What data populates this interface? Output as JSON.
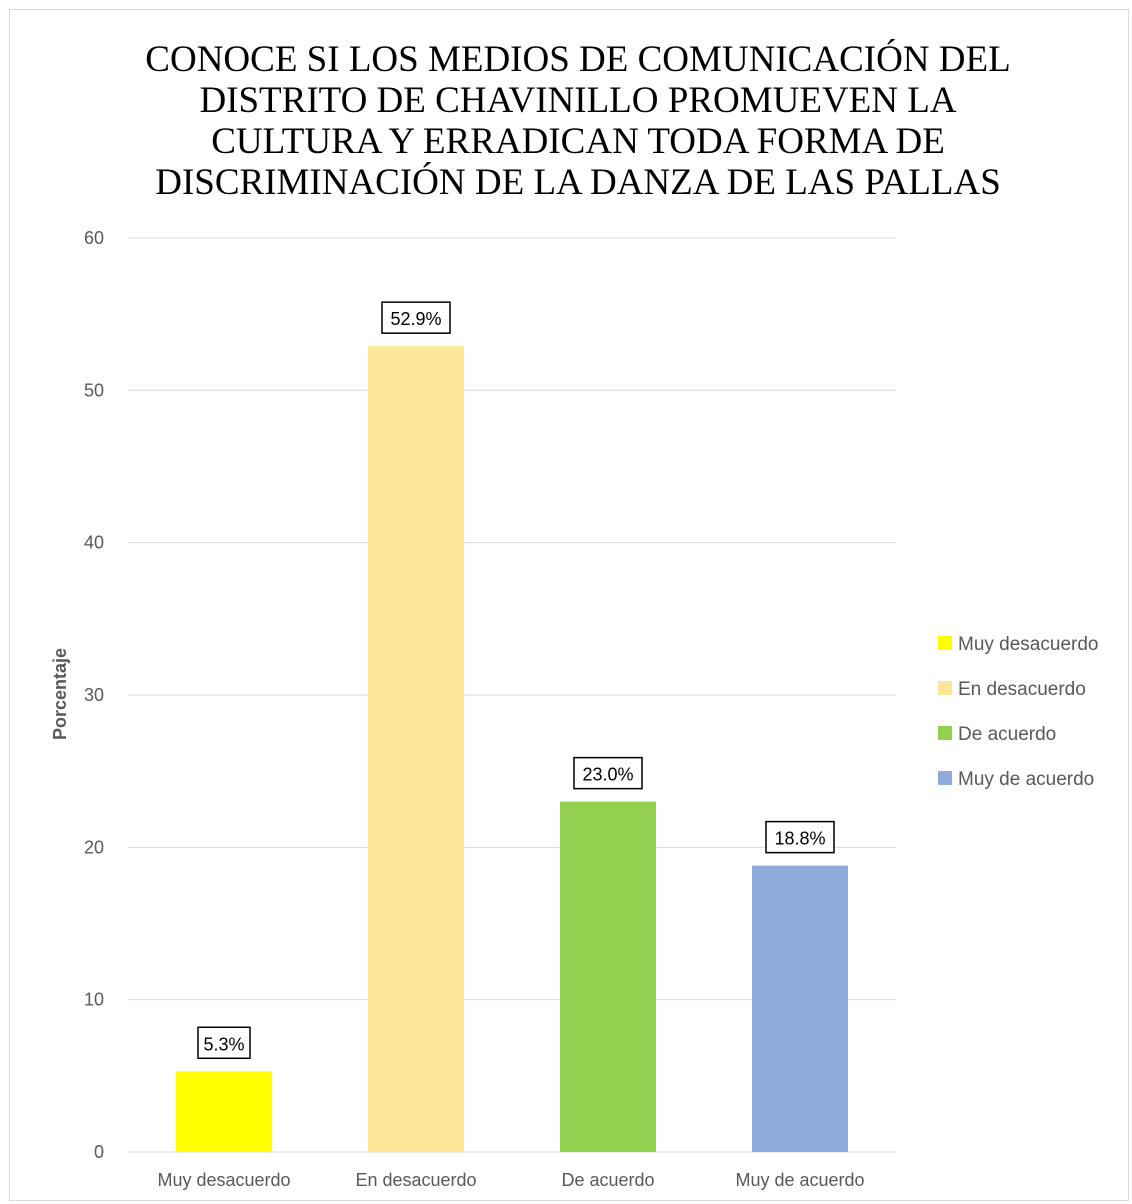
{
  "chart_data": {
    "type": "bar",
    "title_lines": [
      "CONOCE SI LOS MEDIOS DE COMUNICACIÓN DEL",
      "DISTRITO DE CHAVINILLO PROMUEVEN LA",
      "CULTURA Y ERRADICAN TODA FORMA DE",
      "DISCRIMINACIÓN DE LA DANZA DE LAS PALLAS"
    ],
    "xlabel": "",
    "ylabel": "Porcentaje",
    "ylim": [
      0,
      60
    ],
    "yticks": [
      "0",
      "10",
      "20",
      "30",
      "40",
      "50",
      "60"
    ],
    "grid": true,
    "legend_position": "right",
    "categories": [
      "Muy desacuerdo",
      "En desacuerdo",
      "De acuerdo",
      "Muy de acuerdo"
    ],
    "values": [
      5.3,
      52.9,
      23.0,
      18.8
    ],
    "data_labels": [
      "5.3%",
      "52.9%",
      "23.0%",
      "18.8%"
    ],
    "colors": [
      "#ffff00",
      "#ffe699",
      "#92d050",
      "#8faadc"
    ],
    "legend": [
      "Muy desacuerdo",
      "En desacuerdo",
      "De acuerdo",
      "Muy de acuerdo"
    ]
  }
}
